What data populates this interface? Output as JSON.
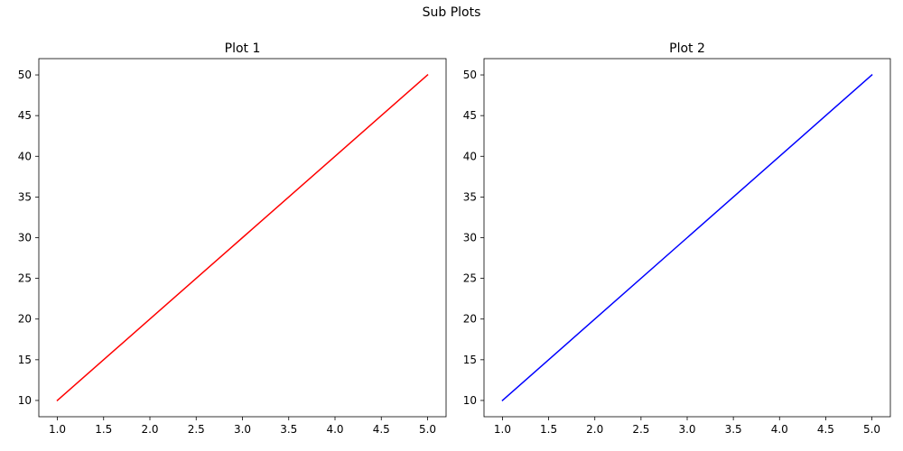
{
  "figure": {
    "suptitle": "Sub Plots"
  },
  "chart_data": [
    {
      "type": "line",
      "title": "Plot 1",
      "xlabel": "",
      "ylabel": "",
      "x": [
        1,
        2,
        3,
        4,
        5
      ],
      "series": [
        {
          "values": [
            10,
            20,
            30,
            40,
            50
          ],
          "color": "#ff0000"
        }
      ],
      "xlim": [
        0.8,
        5.2
      ],
      "ylim": [
        8,
        52
      ],
      "xticks": [
        1.0,
        1.5,
        2.0,
        2.5,
        3.0,
        3.5,
        4.0,
        4.5,
        5.0
      ],
      "xtick_labels": [
        "1.0",
        "1.5",
        "2.0",
        "2.5",
        "3.0",
        "3.5",
        "4.0",
        "4.5",
        "5.0"
      ],
      "yticks": [
        10,
        15,
        20,
        25,
        30,
        35,
        40,
        45,
        50
      ],
      "ytick_labels": [
        "10",
        "15",
        "20",
        "25",
        "30",
        "35",
        "40",
        "45",
        "50"
      ],
      "grid": false,
      "legend": "none"
    },
    {
      "type": "line",
      "title": "Plot 2",
      "xlabel": "",
      "ylabel": "",
      "x": [
        1,
        2,
        3,
        4,
        5
      ],
      "series": [
        {
          "values": [
            10,
            20,
            30,
            40,
            50
          ],
          "color": "#0000ff"
        }
      ],
      "xlim": [
        0.8,
        5.2
      ],
      "ylim": [
        8,
        52
      ],
      "xticks": [
        1.0,
        1.5,
        2.0,
        2.5,
        3.0,
        3.5,
        4.0,
        4.5,
        5.0
      ],
      "xtick_labels": [
        "1.0",
        "1.5",
        "2.0",
        "2.5",
        "3.0",
        "3.5",
        "4.0",
        "4.5",
        "5.0"
      ],
      "yticks": [
        10,
        15,
        20,
        25,
        30,
        35,
        40,
        45,
        50
      ],
      "ytick_labels": [
        "10",
        "15",
        "20",
        "25",
        "30",
        "35",
        "40",
        "45",
        "50"
      ],
      "grid": false,
      "legend": "none"
    }
  ]
}
